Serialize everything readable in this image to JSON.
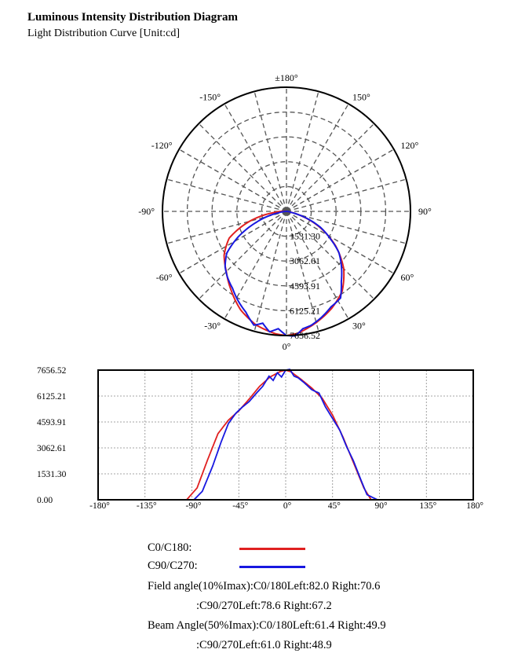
{
  "title": "Luminous Intensity Distribution Diagram",
  "subtitle": "Light Distribution Curve [Unit:cd]",
  "colors": {
    "c0": "#e02020",
    "c90": "#1818e0",
    "grid": "#555555"
  },
  "polar": {
    "angle_labels": [
      {
        "deg": 180,
        "text": "±180°"
      },
      {
        "deg": 150,
        "text": "150°"
      },
      {
        "deg": -150,
        "text": "-150°"
      },
      {
        "deg": 120,
        "text": "120°"
      },
      {
        "deg": -120,
        "text": "-120°"
      },
      {
        "deg": 90,
        "text": "90°"
      },
      {
        "deg": -90,
        "text": "-90°"
      },
      {
        "deg": 60,
        "text": "60°"
      },
      {
        "deg": -60,
        "text": "-60°"
      },
      {
        "deg": 30,
        "text": "30°"
      },
      {
        "deg": -30,
        "text": "-30°"
      },
      {
        "deg": 0,
        "text": "0°"
      }
    ],
    "radial_labels": [
      "1531.30",
      "3062.61",
      "4593.91",
      "6125.21",
      "7656.52"
    ]
  },
  "chart_data": {
    "type": "line",
    "xlim": [
      -180,
      180
    ],
    "ylim": [
      0,
      7656.52
    ],
    "x_ticks": [
      -180,
      -135,
      -90,
      -45,
      0,
      45,
      90,
      135,
      180
    ],
    "x_tick_labels": [
      "-180°",
      "-135°",
      "-90°",
      "-45°",
      "0°",
      "45°",
      "90°",
      "135°",
      "180°"
    ],
    "y_ticks": [
      0,
      1531.3,
      3062.61,
      4593.91,
      6125.21,
      7656.52
    ],
    "y_tick_labels": [
      "0.00",
      "1531.30",
      "3062.61",
      "4593.91",
      "6125.21",
      "7656.52"
    ],
    "grid": true,
    "series": [
      {
        "name": "C0/C180",
        "x": [
          -180,
          -95,
          -85,
          -75,
          -65,
          -55,
          -45,
          -35,
          -25,
          -15,
          -5,
          0,
          5,
          15,
          25,
          35,
          45,
          55,
          65,
          75,
          82,
          95,
          180
        ],
        "values": [
          0,
          0,
          700,
          2350,
          3900,
          4700,
          5250,
          5950,
          6700,
          7250,
          7580,
          7656,
          7560,
          7100,
          6600,
          6000,
          5000,
          3700,
          2200,
          700,
          0,
          0,
          0
        ]
      },
      {
        "name": "C90/C270",
        "x": [
          -180,
          -88,
          -80,
          -70,
          -62,
          -55,
          -48,
          -42,
          -35,
          -28,
          -22,
          -16,
          -12,
          -8,
          -4,
          0,
          4,
          8,
          12,
          18,
          25,
          32,
          38,
          45,
          52,
          58,
          65,
          72,
          78,
          88,
          180
        ],
        "values": [
          0,
          0,
          500,
          2000,
          3400,
          4500,
          5100,
          5450,
          5800,
          6300,
          6700,
          7300,
          7050,
          7500,
          7250,
          7656,
          7700,
          7300,
          7200,
          6900,
          6500,
          6300,
          5500,
          4800,
          4100,
          3200,
          2300,
          1200,
          300,
          0,
          0
        ]
      }
    ]
  },
  "legend": {
    "c0_label": "C0/C180:",
    "c90_label": "C90/C270:"
  },
  "info": {
    "field_c0": "Field angle(10%Imax):C0/180Left:82.0 Right:70.6",
    "field_c90": ":C90/270Left:78.6 Right:67.2",
    "beam_c0": "Beam Angle(50%Imax):C0/180Left:61.4 Right:49.9",
    "beam_c90": ":C90/270Left:61.0 Right:48.9"
  }
}
